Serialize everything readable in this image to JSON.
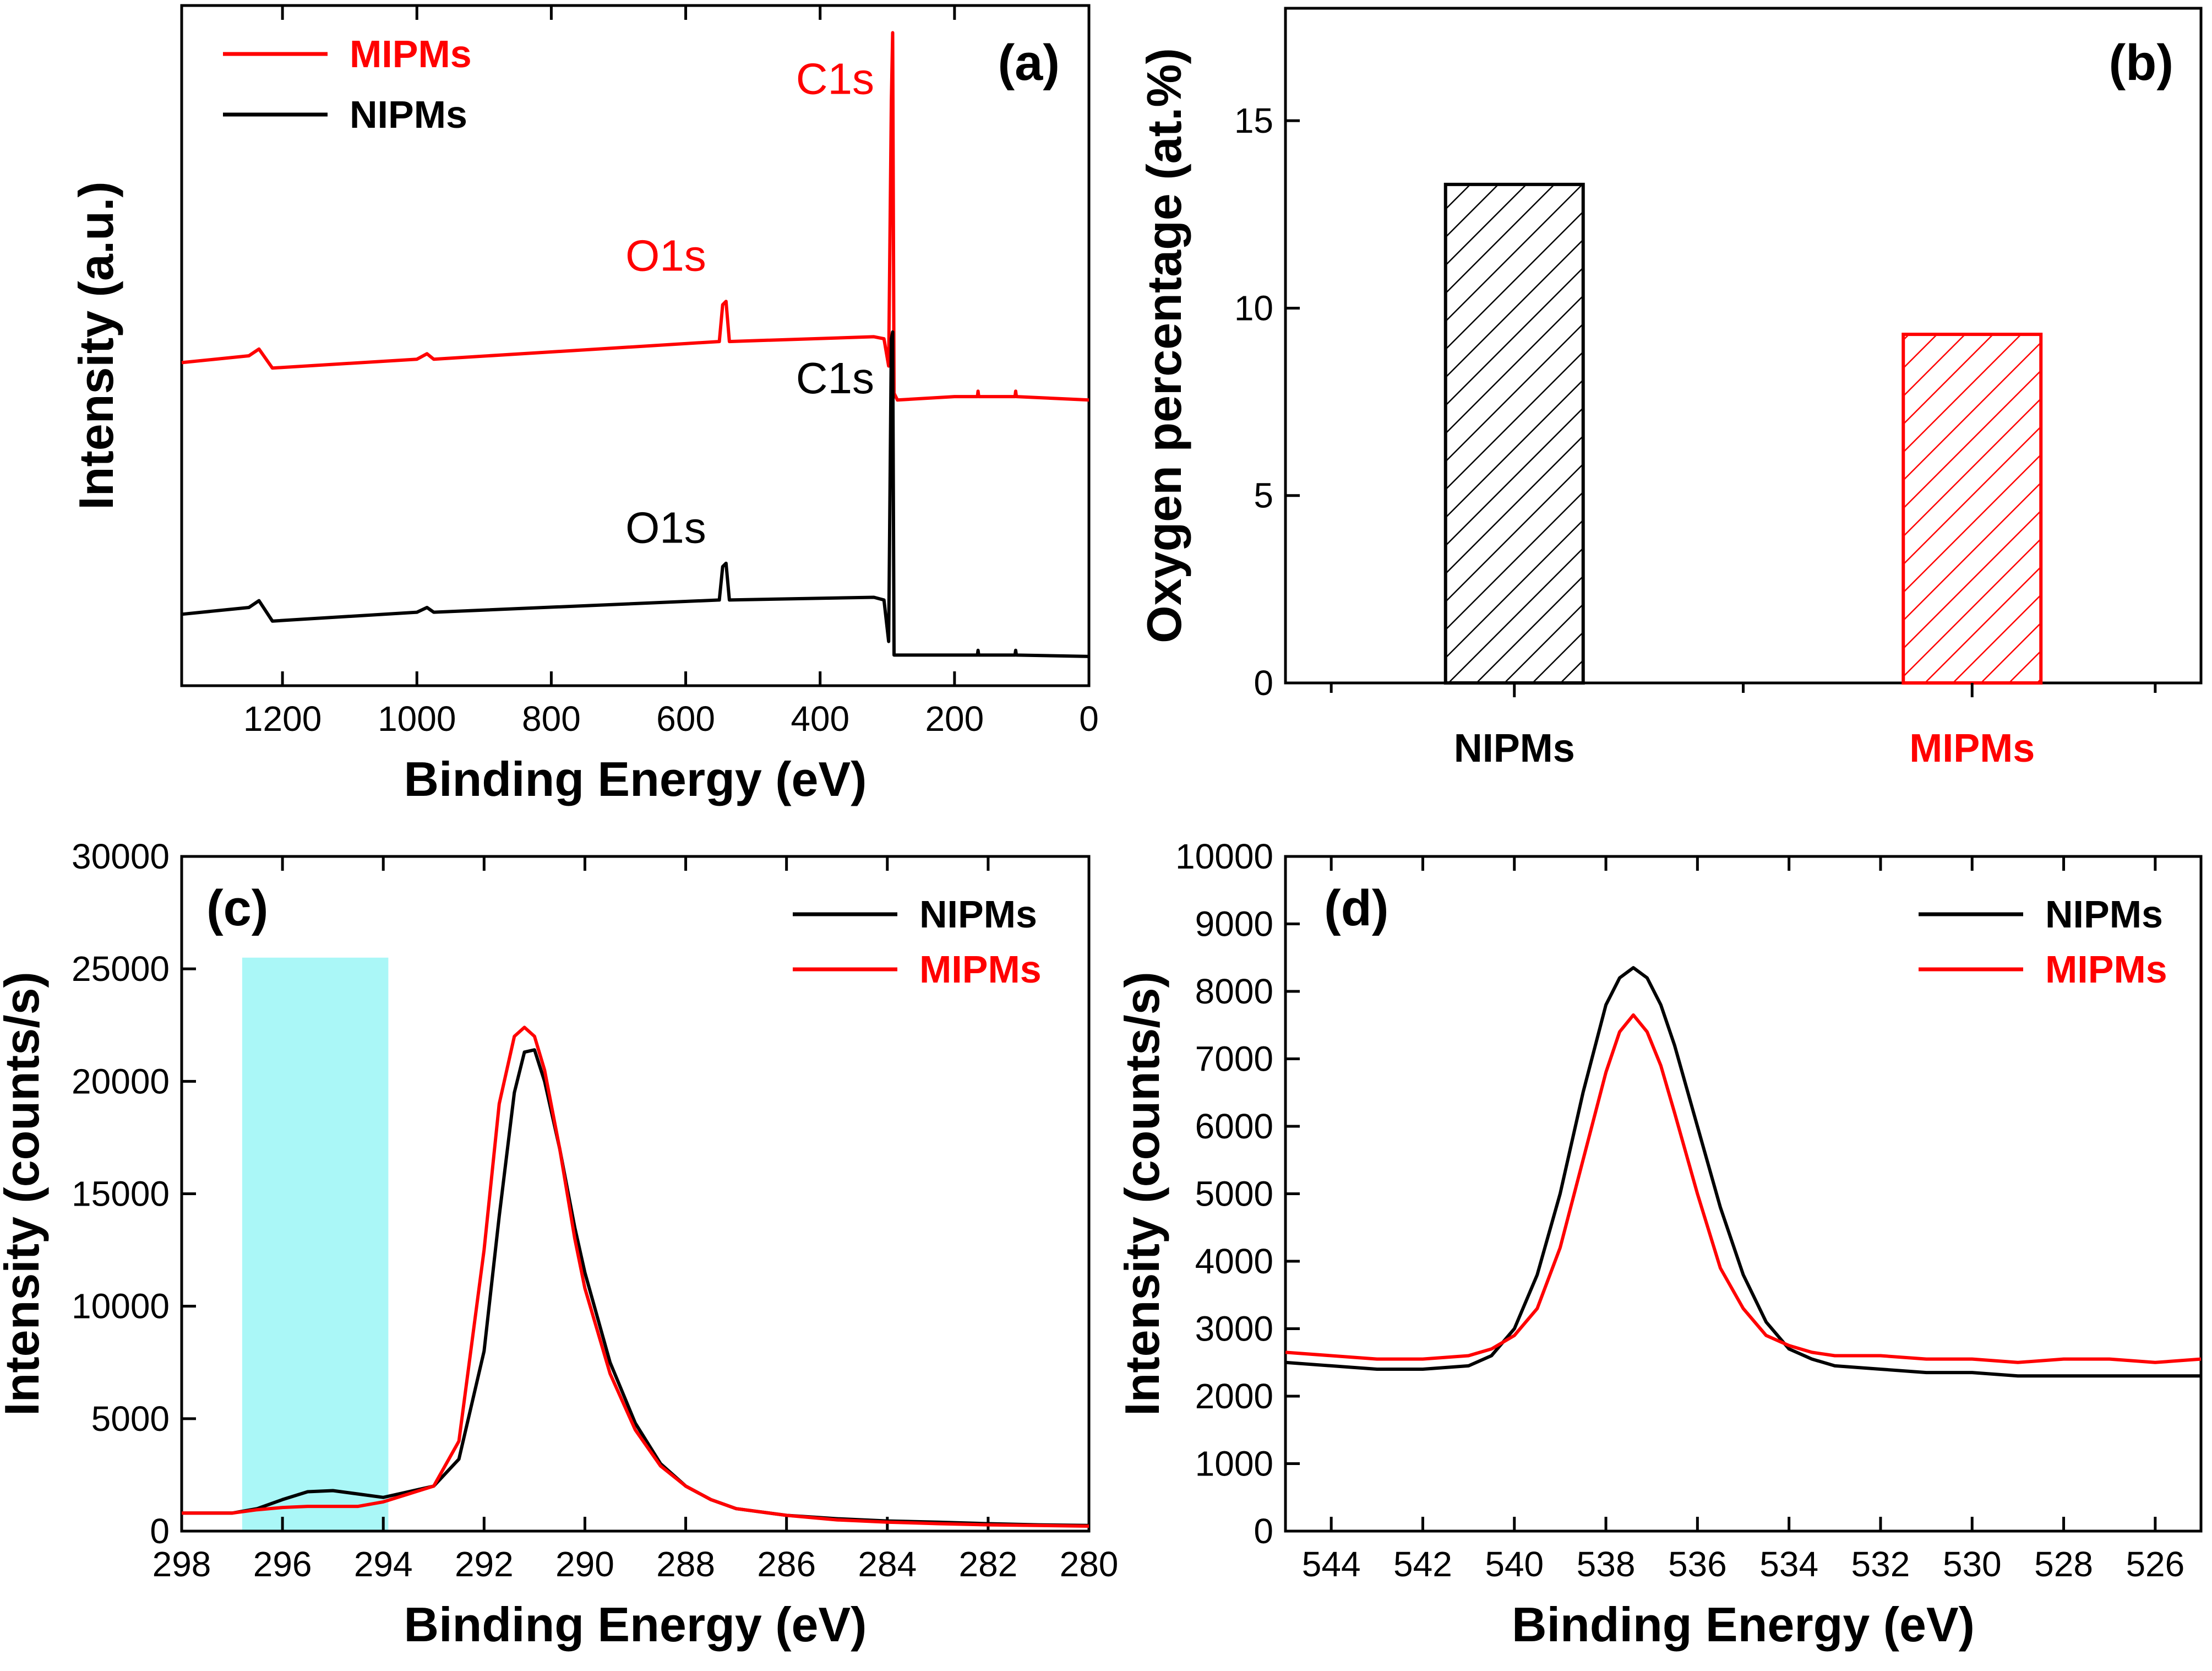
{
  "colors": {
    "NIPMs": "#000000",
    "MIPMs": "#ff0000",
    "highlight": "#aaf7f7"
  },
  "chart_data": [
    {
      "id": "a",
      "type": "line",
      "panel_label": "(a)",
      "title": "",
      "xlabel": "Binding Energy (eV)",
      "ylabel": "Intensity (a.u.)",
      "xlim": [
        1350,
        0
      ],
      "xticks": [
        1200,
        1000,
        800,
        600,
        400,
        200,
        0
      ],
      "ylim": [
        0,
        100
      ],
      "yticks_shown": false,
      "legend": {
        "placement": "top-left",
        "entries": [
          "MIPMs",
          "NIPMs"
        ]
      },
      "series": [
        {
          "name": "MIPMs",
          "x": [
            1350,
            1250,
            1235,
            1215,
            1000,
            985,
            975,
            550,
            545,
            540,
            535,
            320,
            305,
            298,
            294,
            292,
            290,
            285,
            200,
            166,
            165,
            164,
            110,
            109,
            108,
            0
          ],
          "y": [
            47.5,
            48.5,
            49.5,
            46.7,
            48.0,
            48.8,
            48.0,
            50.6,
            56.0,
            56.5,
            50.6,
            51.3,
            51.0,
            47.0,
            86.0,
            96.0,
            43.0,
            42.0,
            42.5,
            42.5,
            43.3,
            42.5,
            42.5,
            43.3,
            42.5,
            42.0
          ]
        },
        {
          "name": "NIPMs",
          "x": [
            1350,
            1250,
            1235,
            1215,
            1000,
            985,
            975,
            550,
            545,
            540,
            535,
            320,
            305,
            298,
            294,
            292,
            290,
            285,
            200,
            166,
            165,
            164,
            110,
            109,
            108,
            0
          ],
          "y": [
            10.5,
            11.5,
            12.5,
            9.5,
            10.8,
            11.5,
            10.8,
            12.6,
            17.5,
            18.0,
            12.6,
            13.0,
            12.6,
            6.5,
            51.0,
            52.0,
            4.5,
            4.5,
            4.5,
            4.5,
            5.2,
            4.5,
            4.5,
            5.2,
            4.5,
            4.3
          ]
        }
      ],
      "annotations": [
        {
          "text": "C1s",
          "series": "MIPMs",
          "x": 290,
          "y": 87
        },
        {
          "text": "O1s",
          "series": "MIPMs",
          "x": 540,
          "y": 61
        },
        {
          "text": "C1s",
          "series": "NIPMs",
          "x": 290,
          "y": 43
        },
        {
          "text": "O1s",
          "series": "NIPMs",
          "x": 540,
          "y": 21
        }
      ]
    },
    {
      "id": "b",
      "type": "bar",
      "panel_label": "(b)",
      "title": "",
      "xlabel": "",
      "ylabel": "Oxygen percentage (at.%)",
      "categories": [
        "NIPMs",
        "MIPMs"
      ],
      "values": [
        13.3,
        9.3
      ],
      "bar_colors": [
        "#000000",
        "#ff0000"
      ],
      "ylim": [
        0,
        18
      ],
      "yticks": [
        0,
        5,
        10,
        15
      ],
      "pattern": "diagonal-hatch"
    },
    {
      "id": "c",
      "type": "line",
      "panel_label": "(c)",
      "title": "",
      "xlabel": "Binding Energy (eV)",
      "ylabel": "Intensity (counts/s)",
      "xlim": [
        298,
        280
      ],
      "xticks": [
        298,
        296,
        294,
        292,
        290,
        288,
        286,
        284,
        282,
        280
      ],
      "ylim": [
        0,
        30000
      ],
      "yticks": [
        0,
        5000,
        10000,
        15000,
        20000,
        25000,
        30000
      ],
      "highlight_band": {
        "x": [
          296.8,
          293.9
        ],
        "y": [
          0,
          25500
        ]
      },
      "legend": {
        "placement": "top-right",
        "entries": [
          "NIPMs",
          "MIPMs"
        ]
      },
      "series": [
        {
          "name": "NIPMs",
          "x": [
            298,
            297,
            296.5,
            296,
            295.5,
            295,
            294.5,
            294,
            293.5,
            293,
            292.5,
            292,
            291.7,
            291.4,
            291.2,
            291.0,
            290.8,
            290.5,
            290.2,
            290,
            289.5,
            289,
            288.5,
            288,
            287.5,
            287,
            286,
            285,
            284,
            283,
            282,
            281,
            280
          ],
          "y": [
            800,
            800,
            1000,
            1400,
            1750,
            1800,
            1650,
            1500,
            1750,
            2000,
            3200,
            8000,
            14000,
            19500,
            21300,
            21400,
            20000,
            17000,
            13500,
            11500,
            7500,
            4800,
            3000,
            2000,
            1400,
            1000,
            700,
            550,
            450,
            400,
            330,
            280,
            250
          ]
        },
        {
          "name": "MIPMs",
          "x": [
            298,
            297,
            296.5,
            296,
            295.5,
            295,
            294.5,
            294,
            293.5,
            293,
            292.5,
            292,
            291.7,
            291.4,
            291.2,
            291.0,
            290.8,
            290.5,
            290.2,
            290,
            289.5,
            289,
            288.5,
            288,
            287.5,
            287,
            286,
            285,
            284,
            283,
            282,
            281,
            280
          ],
          "y": [
            800,
            800,
            950,
            1050,
            1100,
            1100,
            1100,
            1300,
            1650,
            2000,
            4000,
            12500,
            19000,
            22000,
            22400,
            22000,
            20500,
            17000,
            13000,
            10800,
            7000,
            4500,
            2900,
            2000,
            1400,
            1000,
            700,
            500,
            400,
            330,
            280,
            250,
            220
          ]
        }
      ]
    },
    {
      "id": "d",
      "type": "line",
      "panel_label": "(d)",
      "title": "",
      "xlabel": "Binding Energy (eV)",
      "ylabel": "Intensity (counts/s)",
      "xlim": [
        545,
        525
      ],
      "xticks": [
        544,
        542,
        540,
        538,
        536,
        534,
        532,
        530,
        528,
        526
      ],
      "ylim": [
        0,
        10000
      ],
      "yticks": [
        0,
        1000,
        2000,
        3000,
        4000,
        5000,
        6000,
        7000,
        8000,
        9000,
        10000
      ],
      "legend": {
        "placement": "top-right",
        "entries": [
          "NIPMs",
          "MIPMs"
        ]
      },
      "series": [
        {
          "name": "NIPMs",
          "x": [
            545,
            544,
            543,
            542,
            541,
            540.5,
            540,
            539.5,
            539,
            538.5,
            538,
            537.7,
            537.4,
            537.1,
            536.8,
            536.5,
            536,
            535.5,
            535,
            534.5,
            534,
            533.5,
            533,
            532,
            531,
            530,
            529,
            528,
            527,
            526,
            525
          ],
          "y": [
            2500,
            2450,
            2400,
            2400,
            2450,
            2600,
            3000,
            3800,
            5000,
            6500,
            7800,
            8200,
            8350,
            8200,
            7800,
            7200,
            6000,
            4800,
            3800,
            3100,
            2700,
            2550,
            2450,
            2400,
            2350,
            2350,
            2300,
            2300,
            2300,
            2300,
            2300
          ]
        },
        {
          "name": "MIPMs",
          "x": [
            545,
            544,
            543,
            542,
            541,
            540.5,
            540,
            539.5,
            539,
            538.5,
            538,
            537.7,
            537.4,
            537.1,
            536.8,
            536.5,
            536,
            535.5,
            535,
            534.5,
            534,
            533.5,
            533,
            532,
            531,
            530,
            529,
            528,
            527,
            526,
            525
          ],
          "y": [
            2650,
            2600,
            2550,
            2550,
            2600,
            2700,
            2900,
            3300,
            4200,
            5500,
            6800,
            7400,
            7650,
            7400,
            6900,
            6200,
            5000,
            3900,
            3300,
            2900,
            2750,
            2650,
            2600,
            2600,
            2550,
            2550,
            2500,
            2550,
            2550,
            2500,
            2550
          ]
        }
      ]
    }
  ]
}
